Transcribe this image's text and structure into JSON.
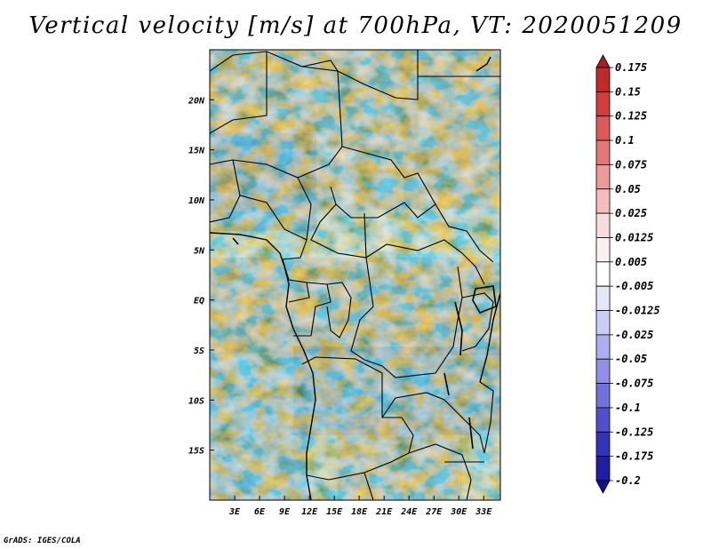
{
  "title": "Vertical velocity [m/s] at 700hPa, VT: 2020051209",
  "credit": "GrADS: IGES/COLA",
  "map": {
    "lat_range": [
      -20,
      25
    ],
    "lon_range": [
      0,
      35
    ],
    "lat_labels": [
      "20N",
      "15N",
      "10N",
      "5N",
      "EQ",
      "5S",
      "10S",
      "15S"
    ],
    "lon_labels": [
      "3E",
      "6E",
      "9E",
      "12E",
      "15E",
      "18E",
      "21E",
      "24E",
      "27E",
      "30E",
      "33E"
    ],
    "colors": {
      "up_strong": "#c83c3c",
      "down_strong": "#5a5ad2",
      "land_border": "#000000"
    }
  },
  "colorbar": {
    "levels": [
      "0.175",
      "0.15",
      "0.125",
      "0.1",
      "0.075",
      "0.05",
      "0.025",
      "0.0125",
      "0.005",
      "-0.005",
      "-0.0125",
      "-0.025",
      "-0.05",
      "-0.075",
      "-0.1",
      "-0.125",
      "-0.175",
      "-0.2"
    ],
    "colors": [
      "#a51e23",
      "#c02a2a",
      "#d23c3c",
      "#dc5a5a",
      "#e47878",
      "#ec9a9a",
      "#f4bcbc",
      "#fadcdc",
      "#fdf0f0",
      "#ffffff",
      "#e6e6fa",
      "#cccdf4",
      "#adaeee",
      "#9090e6",
      "#7272dc",
      "#5050cd",
      "#3232bb",
      "#1e1ea0",
      "#10108a"
    ]
  }
}
